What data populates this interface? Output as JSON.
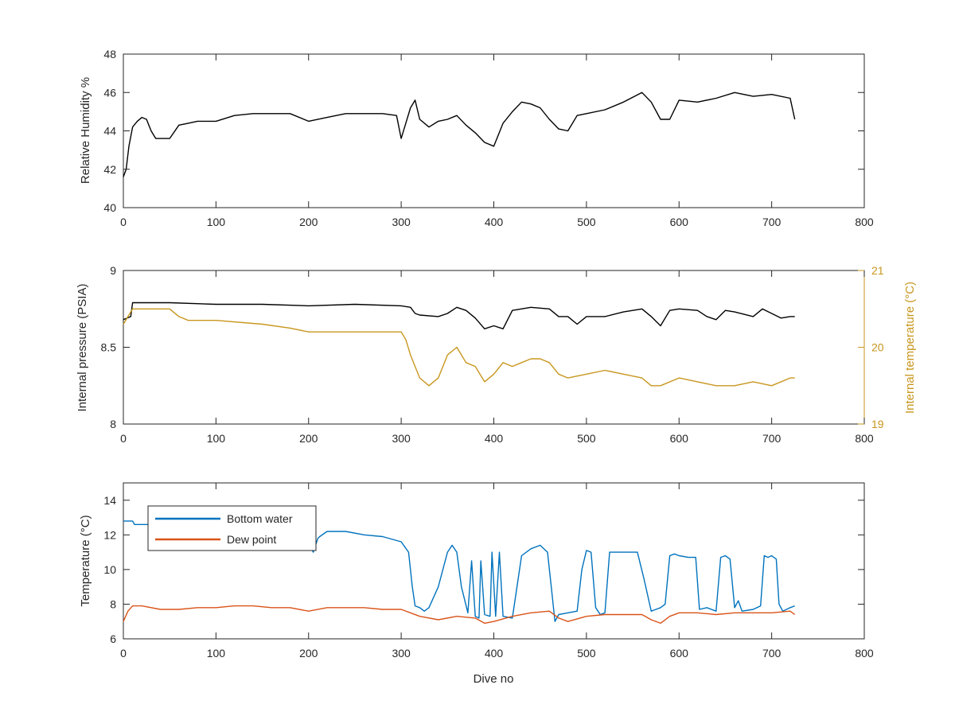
{
  "chart_data": [
    {
      "type": "line",
      "xlabel": "",
      "ylabel": "Relative Humidity %",
      "xlim": [
        0,
        800
      ],
      "ylim": [
        40,
        48
      ],
      "x_ticks": [
        "0",
        "100",
        "200",
        "300",
        "400",
        "500",
        "600",
        "700",
        "800"
      ],
      "y_ticks": [
        "40",
        "42",
        "44",
        "46",
        "48"
      ],
      "grid": false,
      "series": [
        {
          "color": "#000000",
          "x": [
            0,
            3,
            6,
            10,
            15,
            20,
            25,
            30,
            35,
            40,
            50,
            60,
            70,
            80,
            100,
            120,
            140,
            160,
            180,
            200,
            220,
            240,
            260,
            280,
            295,
            300,
            305,
            310,
            315,
            320,
            330,
            340,
            350,
            360,
            370,
            380,
            390,
            400,
            410,
            420,
            430,
            440,
            450,
            460,
            470,
            480,
            490,
            500,
            520,
            540,
            560,
            570,
            580,
            590,
            600,
            620,
            640,
            660,
            680,
            700,
            720,
            725
          ],
          "y": [
            41.6,
            42.0,
            43.2,
            44.2,
            44.5,
            44.7,
            44.6,
            44.0,
            43.6,
            43.6,
            43.6,
            44.3,
            44.4,
            44.5,
            44.5,
            44.8,
            44.9,
            44.9,
            44.9,
            44.5,
            44.7,
            44.9,
            44.9,
            44.9,
            44.8,
            43.6,
            44.4,
            45.2,
            45.6,
            44.6,
            44.2,
            44.5,
            44.6,
            44.8,
            44.3,
            43.9,
            43.4,
            43.2,
            44.4,
            45.0,
            45.5,
            45.4,
            45.2,
            44.6,
            44.1,
            44.0,
            44.8,
            44.9,
            45.1,
            45.5,
            46.0,
            45.5,
            44.6,
            44.6,
            45.6,
            45.5,
            45.7,
            46.0,
            45.8,
            45.9,
            45.7,
            44.6
          ]
        }
      ]
    },
    {
      "type": "line",
      "xlabel": "",
      "ylabel": "Internal pressure (PSIA)",
      "y2label": "Internal temperature (°C)",
      "xlim": [
        0,
        800
      ],
      "ylim": [
        8,
        9
      ],
      "y2lim": [
        19,
        21
      ],
      "x_ticks": [
        "0",
        "100",
        "200",
        "300",
        "400",
        "500",
        "600",
        "700",
        "800"
      ],
      "y_ticks": [
        "8",
        "8.5",
        "9"
      ],
      "y2_ticks": [
        "19",
        "20",
        "21"
      ],
      "grid": false,
      "series": [
        {
          "color": "#000000",
          "axis": "left",
          "x": [
            0,
            8,
            10,
            50,
            100,
            150,
            200,
            250,
            300,
            310,
            315,
            320,
            340,
            350,
            360,
            370,
            380,
            390,
            400,
            410,
            420,
            440,
            460,
            470,
            480,
            490,
            500,
            520,
            540,
            560,
            570,
            580,
            590,
            600,
            620,
            630,
            640,
            650,
            660,
            680,
            690,
            700,
            710,
            720,
            725
          ],
          "y": [
            8.68,
            8.7,
            8.79,
            8.79,
            8.78,
            8.78,
            8.77,
            8.78,
            8.77,
            8.76,
            8.72,
            8.71,
            8.7,
            8.72,
            8.76,
            8.74,
            8.69,
            8.62,
            8.64,
            8.62,
            8.74,
            8.76,
            8.75,
            8.7,
            8.7,
            8.65,
            8.7,
            8.7,
            8.73,
            8.75,
            8.7,
            8.64,
            8.74,
            8.75,
            8.74,
            8.7,
            8.68,
            8.74,
            8.73,
            8.7,
            8.75,
            8.72,
            8.69,
            8.7,
            8.7
          ]
        },
        {
          "color": "#c8961e",
          "axis": "right",
          "x": [
            0,
            5,
            10,
            30,
            50,
            60,
            70,
            100,
            150,
            180,
            200,
            220,
            240,
            260,
            280,
            300,
            305,
            310,
            320,
            330,
            340,
            350,
            360,
            370,
            380,
            390,
            400,
            410,
            420,
            430,
            440,
            450,
            460,
            470,
            480,
            500,
            520,
            540,
            560,
            570,
            580,
            600,
            620,
            640,
            660,
            680,
            700,
            720,
            725
          ],
          "y": [
            20.3,
            20.4,
            20.5,
            20.5,
            20.5,
            20.4,
            20.35,
            20.35,
            20.3,
            20.25,
            20.2,
            20.2,
            20.2,
            20.2,
            20.2,
            20.2,
            20.1,
            19.9,
            19.6,
            19.5,
            19.6,
            19.9,
            20.0,
            19.8,
            19.75,
            19.55,
            19.65,
            19.8,
            19.75,
            19.8,
            19.85,
            19.85,
            19.8,
            19.65,
            19.6,
            19.65,
            19.7,
            19.65,
            19.6,
            19.5,
            19.5,
            19.6,
            19.55,
            19.5,
            19.5,
            19.55,
            19.5,
            19.6,
            19.6
          ]
        }
      ]
    },
    {
      "type": "line",
      "xlabel": "Dive no",
      "ylabel": "Temperature (°C)",
      "xlim": [
        0,
        800
      ],
      "ylim": [
        6,
        15
      ],
      "x_ticks": [
        "0",
        "100",
        "200",
        "300",
        "400",
        "500",
        "600",
        "700",
        "800"
      ],
      "y_ticks": [
        "6",
        "8",
        "10",
        "12",
        "14"
      ],
      "legend_position": "top-left",
      "grid": false,
      "series": [
        {
          "name": "Bottom water",
          "color": "#0072bd",
          "x": [
            0,
            10,
            12,
            60,
            62,
            200,
            205,
            210,
            212,
            220,
            240,
            260,
            280,
            300,
            308,
            312,
            315,
            320,
            325,
            330,
            340,
            350,
            355,
            360,
            365,
            372,
            376,
            380,
            384,
            386,
            390,
            396,
            398,
            402,
            406,
            410,
            420,
            430,
            440,
            450,
            458,
            462,
            466,
            470,
            480,
            490,
            495,
            500,
            505,
            510,
            515,
            520,
            525,
            530,
            540,
            555,
            562,
            570,
            575,
            580,
            585,
            590,
            595,
            600,
            610,
            618,
            622,
            630,
            640,
            645,
            650,
            655,
            660,
            664,
            668,
            680,
            688,
            692,
            696,
            700,
            705,
            708,
            712,
            720,
            725
          ],
          "y": [
            12.8,
            12.8,
            12.6,
            12.6,
            11.4,
            11.5,
            11.0,
            11.8,
            11.9,
            12.2,
            12.2,
            12.0,
            11.9,
            11.6,
            11.0,
            9.0,
            7.9,
            7.8,
            7.6,
            7.8,
            9.0,
            11.0,
            11.4,
            11.0,
            9.0,
            7.5,
            10.5,
            7.3,
            7.2,
            10.5,
            7.4,
            7.3,
            11.0,
            7.3,
            11.0,
            7.3,
            7.2,
            10.8,
            11.2,
            11.4,
            11.0,
            9.0,
            7.0,
            7.4,
            7.5,
            7.6,
            10.0,
            11.1,
            11.0,
            7.8,
            7.4,
            7.5,
            11.0,
            11.0,
            11.0,
            11.0,
            9.5,
            7.6,
            7.7,
            7.8,
            8.0,
            10.8,
            10.9,
            10.8,
            10.7,
            10.7,
            7.7,
            7.8,
            7.6,
            10.7,
            10.8,
            10.6,
            7.8,
            8.2,
            7.6,
            7.7,
            7.9,
            10.8,
            10.7,
            10.8,
            10.6,
            8.0,
            7.6,
            7.8,
            7.9
          ]
        },
        {
          "name": "Dew point",
          "color": "#d95319",
          "x": [
            0,
            5,
            10,
            20,
            40,
            60,
            80,
            100,
            120,
            140,
            160,
            180,
            200,
            220,
            240,
            260,
            280,
            300,
            310,
            320,
            340,
            360,
            380,
            390,
            400,
            420,
            440,
            460,
            470,
            480,
            500,
            520,
            540,
            560,
            570,
            580,
            590,
            600,
            620,
            640,
            660,
            680,
            700,
            720,
            725
          ],
          "y": [
            7.0,
            7.6,
            7.9,
            7.9,
            7.7,
            7.7,
            7.8,
            7.8,
            7.9,
            7.9,
            7.8,
            7.8,
            7.6,
            7.8,
            7.8,
            7.8,
            7.7,
            7.7,
            7.5,
            7.3,
            7.1,
            7.3,
            7.2,
            6.9,
            7.0,
            7.3,
            7.5,
            7.6,
            7.2,
            7.0,
            7.3,
            7.4,
            7.4,
            7.4,
            7.1,
            6.9,
            7.3,
            7.5,
            7.5,
            7.4,
            7.5,
            7.5,
            7.5,
            7.6,
            7.4
          ]
        }
      ]
    }
  ],
  "panels": [
    {
      "y_ticks": [
        "40",
        "42",
        "44",
        "46",
        "48"
      ],
      "x_ticks": [
        "0",
        "100",
        "200",
        "300",
        "400",
        "500",
        "600",
        "700",
        "800"
      ],
      "ylabel": "Relative Humidity %"
    },
    {
      "y_ticks": [
        "8",
        "8.5",
        "9"
      ],
      "y2_ticks": [
        "19",
        "20",
        "21"
      ],
      "x_ticks": [
        "0",
        "100",
        "200",
        "300",
        "400",
        "500",
        "600",
        "700",
        "800"
      ],
      "ylabel": "Internal pressure (PSIA)",
      "y2label": "Internal temperature (°C)"
    },
    {
      "y_ticks": [
        "6",
        "8",
        "10",
        "12",
        "14"
      ],
      "x_ticks": [
        "0",
        "100",
        "200",
        "300",
        "400",
        "500",
        "600",
        "700",
        "800"
      ],
      "ylabel": "Temperature (°C)",
      "xlabel": "Dive no",
      "legend": [
        "Bottom water",
        "Dew point"
      ]
    }
  ]
}
